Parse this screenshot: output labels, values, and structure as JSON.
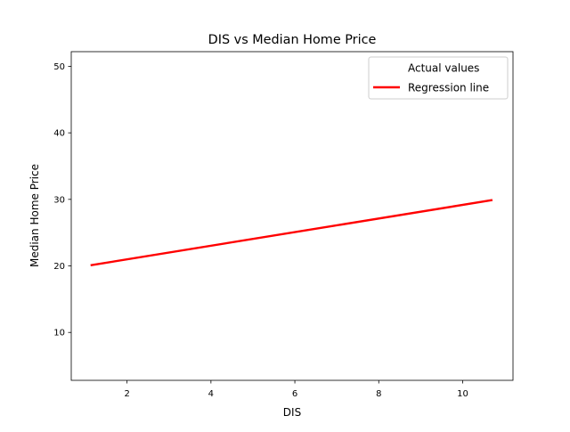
{
  "chart_data": {
    "type": "line",
    "title": "DIS vs Median Home Price",
    "xlabel": "DIS",
    "ylabel": "Median Home Price",
    "xlim": [
      0.67,
      11.2
    ],
    "ylim": [
      2.8,
      52.2
    ],
    "xticks": [
      2,
      4,
      6,
      8,
      10
    ],
    "yticks": [
      10,
      20,
      30,
      40,
      50
    ],
    "grid": false,
    "legend_placement": "top-right",
    "series": [
      {
        "name": "Actual values",
        "kind": "scatter",
        "color": "#ffffff",
        "points": []
      },
      {
        "name": "Regression line",
        "kind": "line",
        "color": "#ff0000",
        "points": [
          [
            1.13,
            20.1
          ],
          [
            10.71,
            29.9
          ]
        ]
      }
    ]
  }
}
